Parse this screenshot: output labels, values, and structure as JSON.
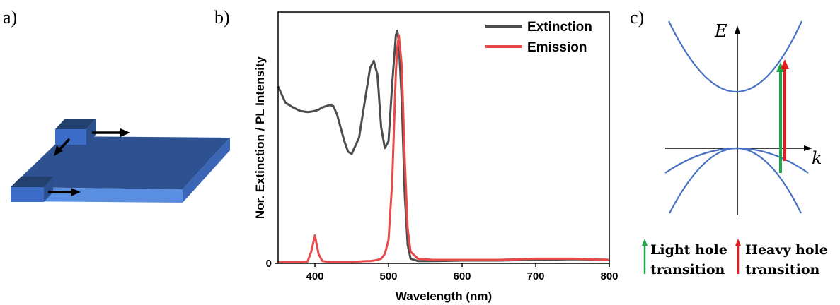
{
  "panels": {
    "a": "a)",
    "b": "b)",
    "c": "c)"
  },
  "chart_data": {
    "type": "line",
    "xlabel": "Wavelength (nm)",
    "ylabel": "Nor. Extinction / PL Intensity",
    "x": [
      350,
      360,
      370,
      380,
      390,
      395,
      400,
      405,
      410,
      420,
      425,
      430,
      440,
      445,
      450,
      460,
      470,
      475,
      480,
      485,
      490,
      495,
      500,
      505,
      510,
      512,
      514,
      518,
      522,
      526,
      530,
      540,
      560,
      600,
      650,
      700,
      750,
      800
    ],
    "series": [
      {
        "name": "Extinction",
        "color": "#4d4d4d",
        "values": [
          0.76,
          0.69,
          0.67,
          0.655,
          0.65,
          0.652,
          0.655,
          0.66,
          0.67,
          0.68,
          0.676,
          0.64,
          0.525,
          0.48,
          0.47,
          0.54,
          0.74,
          0.84,
          0.87,
          0.81,
          0.585,
          0.495,
          0.525,
          0.77,
          0.98,
          1.0,
          0.95,
          0.7,
          0.3,
          0.08,
          0.02,
          0.01,
          0.01,
          0.012,
          0.012,
          0.015,
          0.018,
          0.015
        ]
      },
      {
        "name": "Emission",
        "color": "#e84a4a",
        "values": [
          0.005,
          0.005,
          0.005,
          0.005,
          0.008,
          0.05,
          0.12,
          0.04,
          0.01,
          0.005,
          0.005,
          0.005,
          0.005,
          0.005,
          0.005,
          0.008,
          0.01,
          0.01,
          0.012,
          0.015,
          0.02,
          0.04,
          0.1,
          0.35,
          0.82,
          0.93,
          0.98,
          0.85,
          0.45,
          0.15,
          0.05,
          0.02,
          0.015,
          0.015,
          0.015,
          0.02,
          0.02,
          0.015
        ]
      }
    ],
    "xlim": [
      350,
      800
    ],
    "xticks": [
      400,
      500,
      600,
      700,
      800
    ],
    "ylim": [
      0,
      1.08
    ],
    "yticks": [
      0
    ],
    "legend": "upper right"
  },
  "diagram": {
    "energy_axis": "E",
    "momentum_axis": "k",
    "legend": [
      {
        "lines": [
          "Light hole",
          "transition"
        ]
      },
      {
        "lines": [
          "Heavy hole",
          "transition"
        ]
      }
    ]
  }
}
